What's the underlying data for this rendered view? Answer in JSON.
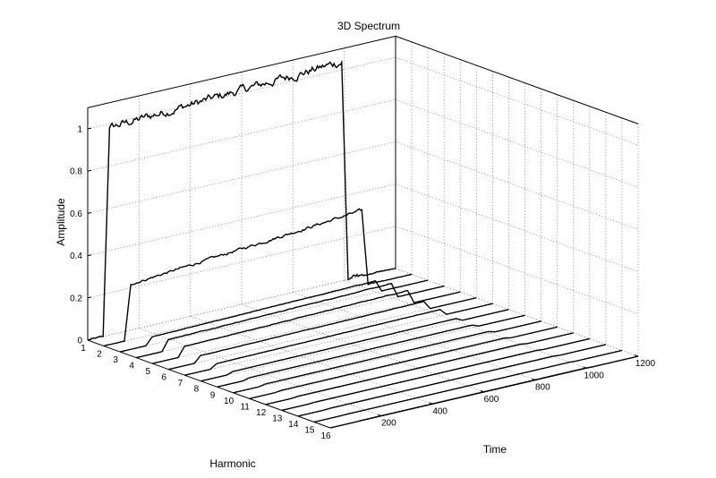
{
  "chart_data": {
    "type": "line",
    "title": "3D Spectrum",
    "xlabel": "Time",
    "ylabel": "Harmonic",
    "zlabel": "Amplitude",
    "xlim": [
      0,
      1200
    ],
    "ylim": [
      1,
      16
    ],
    "zlim": [
      0,
      1.1
    ],
    "x_ticks": [
      200,
      400,
      600,
      800,
      1000,
      1200
    ],
    "y_ticks": [
      1,
      2,
      3,
      4,
      5,
      6,
      7,
      8,
      9,
      10,
      11,
      12,
      13,
      14,
      15,
      16
    ],
    "z_ticks": [
      0,
      0.2,
      0.4,
      0.6,
      0.8,
      1
    ],
    "grid": true,
    "series": [
      {
        "harmonic": 1,
        "t_on": 60,
        "t_off": 1015,
        "level": 0.98,
        "drift": 0.06
      },
      {
        "harmonic": 2,
        "t_on": 80,
        "t_off": 1030,
        "level": 0.26,
        "drift": 0.1
      },
      {
        "harmonic": 3,
        "t_on": 100,
        "t_off": 1020,
        "level": 0.035,
        "drift": 0.02
      },
      {
        "harmonic": 4,
        "t_on": 100,
        "t_off": 1020,
        "level": 0.05,
        "drift": 0.02
      },
      {
        "harmonic": 5,
        "t_on": 100,
        "t_off": 1020,
        "level": 0.045,
        "drift": 0.02
      },
      {
        "harmonic": 6,
        "t_on": 100,
        "t_off": 1020,
        "level": 0.03,
        "drift": 0.01
      },
      {
        "harmonic": 7,
        "t_on": 100,
        "t_off": 1020,
        "level": 0.02,
        "drift": 0.01
      },
      {
        "harmonic": 8,
        "t_on": 100,
        "t_off": 1020,
        "level": 0.01,
        "drift": 0.005
      },
      {
        "harmonic": 9,
        "t_on": 100,
        "t_off": 1020,
        "level": 0.008,
        "drift": 0.004
      },
      {
        "harmonic": 10,
        "t_on": 100,
        "t_off": 1020,
        "level": 0.006,
        "drift": 0.003
      },
      {
        "harmonic": 11,
        "t_on": 100,
        "t_off": 1020,
        "level": 0.004,
        "drift": 0.002
      },
      {
        "harmonic": 12,
        "t_on": 100,
        "t_off": 1020,
        "level": 0.003,
        "drift": 0.002
      },
      {
        "harmonic": 13,
        "t_on": 100,
        "t_off": 1020,
        "level": 0.002,
        "drift": 0.001
      },
      {
        "harmonic": 14,
        "t_on": 100,
        "t_off": 1020,
        "level": 0.002,
        "drift": 0.001
      },
      {
        "harmonic": 15,
        "t_on": 100,
        "t_off": 1020,
        "level": 0.001,
        "drift": 0.001
      },
      {
        "harmonic": 16,
        "t_on": 100,
        "t_off": 1020,
        "level": 0.001,
        "drift": 0.001
      }
    ]
  }
}
